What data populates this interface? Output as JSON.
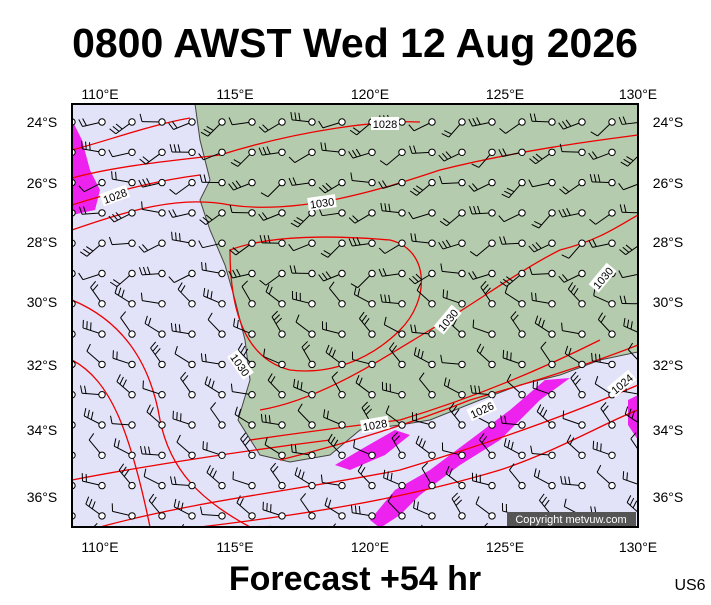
{
  "header": {
    "title": "0800 AWST Wed 12 Aug 2026"
  },
  "map": {
    "lon_labels": [
      "110°E",
      "115°E",
      "120°E",
      "125°E",
      "130°E"
    ],
    "lat_labels": [
      "24°S",
      "26°S",
      "28°S",
      "30°S",
      "32°S",
      "34°S",
      "36°S"
    ],
    "isobar_labels": [
      "1028",
      "1030",
      "1028",
      "1030",
      "1030",
      "1028",
      "1026",
      "1024",
      "1030"
    ],
    "copyright": "Copyright metvuw.com"
  },
  "footer": {
    "forecast": "Forecast +54 hr",
    "code": "US6"
  }
}
